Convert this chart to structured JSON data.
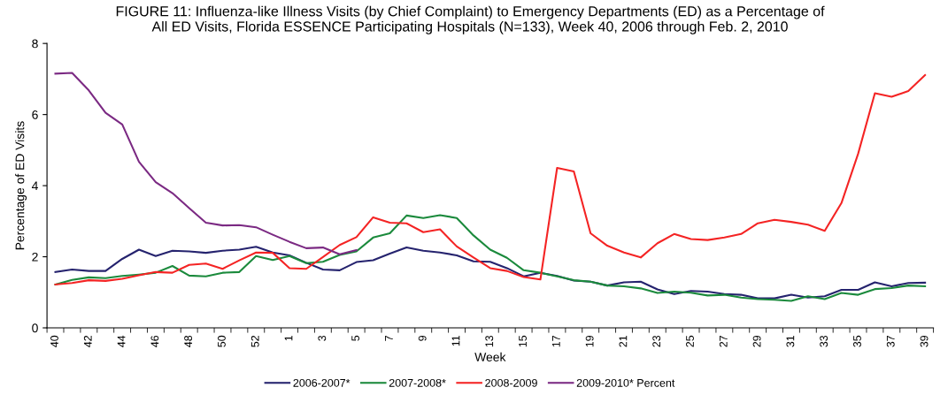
{
  "chart_data": {
    "type": "line",
    "title": "FIGURE 11: Influenza-like Illness Visits (by Chief Complaint) to Emergency Departments (ED) as a Percentage of\nAll ED Visits, Florida ESSENCE Participating Hospitals (N=133), Week 40, 2006 through Feb. 2, 2010",
    "xlabel": "Week",
    "ylabel": "Percentage of ED Visits",
    "categories": [
      "40",
      null,
      "42",
      null,
      "44",
      null,
      "46",
      null,
      "48",
      null,
      "50",
      null,
      "52",
      null,
      "1",
      null,
      "3",
      null,
      "5",
      null,
      "7",
      null,
      "9",
      null,
      "11",
      null,
      "13",
      null,
      "15",
      null,
      "17",
      null,
      "19",
      null,
      "21",
      null,
      "23",
      null,
      "25",
      null,
      "27",
      null,
      "29",
      null,
      "31",
      null,
      "33",
      null,
      "35",
      null,
      "37",
      null,
      "39"
    ],
    "series": [
      {
        "name": "2006-2007*",
        "color": "#25236e",
        "values": [
          1.57,
          1.64,
          1.6,
          1.6,
          1.94,
          2.2,
          2.02,
          2.17,
          2.15,
          2.11,
          2.17,
          2.2,
          2.28,
          2.12,
          2.04,
          1.83,
          1.64,
          1.62,
          1.85,
          1.9,
          2.09,
          2.26,
          2.17,
          2.12,
          2.04,
          1.87,
          1.86,
          1.68,
          1.45,
          1.55,
          1.46,
          1.33,
          1.3,
          1.19,
          1.28,
          1.3,
          1.08,
          0.95,
          1.04,
          1.02,
          0.95,
          0.93,
          0.83,
          0.83,
          0.93,
          0.85,
          0.89,
          1.07,
          1.07,
          1.28,
          1.17,
          1.26,
          1.27
        ]
      },
      {
        "name": "2007-2008*",
        "color": "#1b8a3c",
        "values": [
          1.22,
          1.35,
          1.42,
          1.4,
          1.46,
          1.5,
          1.55,
          1.74,
          1.47,
          1.45,
          1.55,
          1.57,
          2.02,
          1.91,
          2.02,
          1.82,
          1.86,
          2.05,
          2.15,
          2.54,
          2.66,
          3.16,
          3.09,
          3.17,
          3.09,
          2.6,
          2.2,
          1.97,
          1.62,
          1.55,
          1.45,
          1.34,
          1.3,
          1.19,
          1.17,
          1.11,
          0.98,
          1.02,
          0.99,
          0.91,
          0.93,
          0.85,
          0.81,
          0.79,
          0.76,
          0.89,
          0.81,
          0.98,
          0.93,
          1.09,
          1.12,
          1.19,
          1.17
        ]
      },
      {
        "name": "2008-2009",
        "color": "#f42424",
        "values": [
          1.22,
          1.26,
          1.34,
          1.32,
          1.38,
          1.48,
          1.57,
          1.55,
          1.77,
          1.81,
          1.66,
          1.9,
          2.12,
          2.11,
          1.68,
          1.66,
          1.99,
          2.33,
          2.55,
          3.11,
          2.96,
          2.94,
          2.69,
          2.77,
          2.29,
          1.98,
          1.68,
          1.6,
          1.43,
          1.36,
          4.5,
          4.4,
          2.66,
          2.31,
          2.12,
          1.98,
          2.38,
          2.64,
          2.5,
          2.47,
          2.54,
          2.64,
          2.94,
          3.04,
          2.98,
          2.9,
          2.73,
          3.51,
          4.9,
          6.6,
          6.5,
          6.66,
          7.11
        ]
      },
      {
        "name": "2009-2010* Percent",
        "color": "#7b2a83",
        "values": [
          7.15,
          7.17,
          6.68,
          6.05,
          5.72,
          4.67,
          4.1,
          3.79,
          3.37,
          2.96,
          2.88,
          2.89,
          2.83,
          2.62,
          2.42,
          2.24,
          2.26,
          2.07,
          2.19,
          null,
          null,
          null,
          null,
          null,
          null,
          null,
          null,
          null,
          null,
          null,
          null,
          null,
          null,
          null,
          null,
          null,
          null,
          null,
          null,
          null,
          null,
          null,
          null,
          null,
          null,
          null,
          null,
          null,
          null,
          null,
          null,
          null,
          null
        ]
      }
    ],
    "ylim": [
      0,
      8
    ],
    "yticks": [
      0,
      2,
      4,
      6,
      8
    ],
    "grid": false,
    "legend": "bottom",
    "marker": "none",
    "line_style": "solid"
  }
}
